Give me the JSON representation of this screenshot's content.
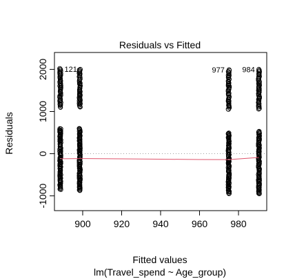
{
  "chart_data": {
    "type": "scatter",
    "title": "Residuals vs Fitted",
    "xlabel": "Fitted values",
    "sublabel": "lm(Travel_spend ~ Age_group)",
    "ylabel": "Residuals",
    "xlim": [
      885.5,
      994.5
    ],
    "ylim": [
      -1350,
      2400
    ],
    "x_ticks": [
      900,
      920,
      940,
      960,
      980
    ],
    "y_ticks": [
      -1000,
      0,
      1000,
      2000
    ],
    "zero_line": 0,
    "groups": [
      {
        "x": 888.5,
        "low": [
          -850,
          600
        ],
        "high": [
          1100,
          2020
        ]
      },
      {
        "x": 898.5,
        "low": [
          -880,
          600
        ],
        "high": [
          1100,
          2000
        ]
      },
      {
        "x": 975.0,
        "low": [
          -950,
          500
        ],
        "high": [
          1050,
          1990
        ]
      },
      {
        "x": 990.5,
        "low": [
          -960,
          530
        ],
        "high": [
          1050,
          2000
        ]
      }
    ],
    "smooth_line": {
      "color": "#DF536B",
      "x": [
        888.5,
        898.5,
        920,
        940,
        960,
        975.0,
        990.5
      ],
      "y": [
        -120,
        -115,
        -122,
        -130,
        -138,
        -140,
        -90
      ]
    },
    "outlier_labels": [
      {
        "text": "121",
        "x": 888.5,
        "y": 2010,
        "side": "right"
      },
      {
        "text": "977",
        "x": 975.0,
        "y": 1990,
        "side": "left"
      },
      {
        "text": "984",
        "x": 990.5,
        "y": 2000,
        "side": "left"
      }
    ]
  }
}
